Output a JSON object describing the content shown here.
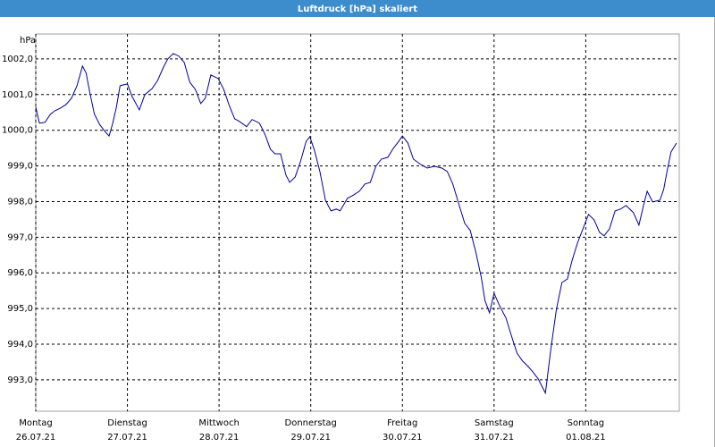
{
  "chart_data": {
    "type": "line",
    "title": "Luftdruck [hPa] skaliert",
    "y_label": "hPa",
    "color": "#000099",
    "grid": true,
    "xlim": [
      0,
      7.02
    ],
    "ylim": [
      992.12,
      1002.7
    ],
    "xticks": [
      {
        "value": 0,
        "label": "Montag",
        "date": "26.07.21"
      },
      {
        "value": 1,
        "label": "Dienstag",
        "date": "27.07.21"
      },
      {
        "value": 2,
        "label": "Mittwoch",
        "date": "28.07.21"
      },
      {
        "value": 3,
        "label": "Donnerstag",
        "date": "29.07.21"
      },
      {
        "value": 4,
        "label": "Freitag",
        "date": "30.07.21"
      },
      {
        "value": 5,
        "label": "Samstag",
        "date": "31.07.21"
      },
      {
        "value": 6,
        "label": "Sonntag",
        "date": "01.08.21"
      }
    ],
    "yticks": [
      {
        "value": 993,
        "label": "993,0"
      },
      {
        "value": 994,
        "label": "994,0"
      },
      {
        "value": 995,
        "label": "995,0"
      },
      {
        "value": 996,
        "label": "996,0"
      },
      {
        "value": 997,
        "label": "997,0"
      },
      {
        "value": 998,
        "label": "998,0"
      },
      {
        "value": 999,
        "label": "999,0"
      },
      {
        "value": 1000,
        "label": "1000,0"
      },
      {
        "value": 1001,
        "label": "1001,0"
      },
      {
        "value": 1002,
        "label": "1002,0"
      }
    ],
    "x": [
      0,
      0.04,
      0.1,
      0.16,
      0.21,
      0.27,
      0.33,
      0.39,
      0.45,
      0.51,
      0.55,
      0.59,
      0.64,
      0.7,
      0.76,
      0.8,
      0.84,
      0.88,
      0.92,
      1.0,
      1.05,
      1.13,
      1.19,
      1.27,
      1.33,
      1.39,
      1.44,
      1.5,
      1.56,
      1.62,
      1.68,
      1.74,
      1.8,
      1.85,
      1.91,
      1.99,
      2.05,
      2.11,
      2.17,
      2.22,
      2.3,
      2.36,
      2.44,
      2.5,
      2.56,
      2.61,
      2.67,
      2.73,
      2.77,
      2.83,
      2.89,
      2.95,
      2.99,
      3.04,
      3.1,
      3.16,
      3.22,
      3.28,
      3.32,
      3.4,
      3.47,
      3.53,
      3.59,
      3.65,
      3.71,
      3.77,
      3.84,
      3.9,
      3.96,
      4.0,
      4.06,
      4.12,
      4.2,
      4.27,
      4.35,
      4.43,
      4.49,
      4.55,
      4.62,
      4.68,
      4.74,
      4.8,
      4.86,
      4.9,
      4.95,
      5.0,
      5.05,
      5.13,
      5.19,
      5.25,
      5.31,
      5.37,
      5.42,
      5.48,
      5.56,
      5.62,
      5.68,
      5.74,
      5.8,
      5.85,
      5.91,
      5.97,
      6.03,
      6.09,
      6.15,
      6.2,
      6.26,
      6.32,
      6.38,
      6.44,
      6.52,
      6.58,
      6.63,
      6.67,
      6.73,
      6.81,
      6.85,
      6.89,
      6.93,
      6.99
    ],
    "values": [
      1000.65,
      1000.2,
      1000.22,
      1000.45,
      1000.55,
      1000.62,
      1000.72,
      1000.9,
      1001.25,
      1001.8,
      1001.6,
      1001.05,
      1000.45,
      1000.15,
      999.95,
      999.84,
      1000.2,
      1000.65,
      1001.25,
      1001.3,
      1000.95,
      1000.57,
      1001.0,
      1001.17,
      1001.4,
      1001.75,
      1002.0,
      1002.15,
      1002.08,
      1001.9,
      1001.35,
      1001.15,
      1000.75,
      1000.9,
      1001.55,
      1001.45,
      1001.15,
      1000.7,
      1000.32,
      1000.25,
      1000.1,
      1000.3,
      1000.2,
      999.89,
      999.47,
      999.34,
      999.34,
      998.74,
      998.54,
      998.69,
      999.14,
      999.69,
      999.82,
      999.44,
      998.84,
      998.04,
      997.74,
      997.79,
      997.74,
      998.09,
      998.19,
      998.29,
      998.49,
      998.54,
      998.99,
      999.19,
      999.24,
      999.49,
      999.69,
      999.84,
      999.64,
      999.19,
      999.04,
      998.94,
      998.99,
      998.94,
      998.84,
      998.49,
      997.89,
      997.39,
      997.19,
      996.59,
      995.88,
      995.23,
      994.88,
      995.43,
      995.13,
      994.73,
      994.23,
      993.75,
      993.53,
      993.38,
      993.23,
      993.03,
      992.63,
      993.88,
      994.98,
      995.73,
      995.83,
      996.34,
      996.84,
      997.24,
      997.64,
      997.49,
      997.14,
      997.04,
      997.24,
      997.74,
      997.79,
      997.89,
      997.69,
      997.34,
      997.89,
      998.29,
      997.99,
      998.04,
      998.34,
      998.89,
      999.39,
      999.64
    ]
  }
}
